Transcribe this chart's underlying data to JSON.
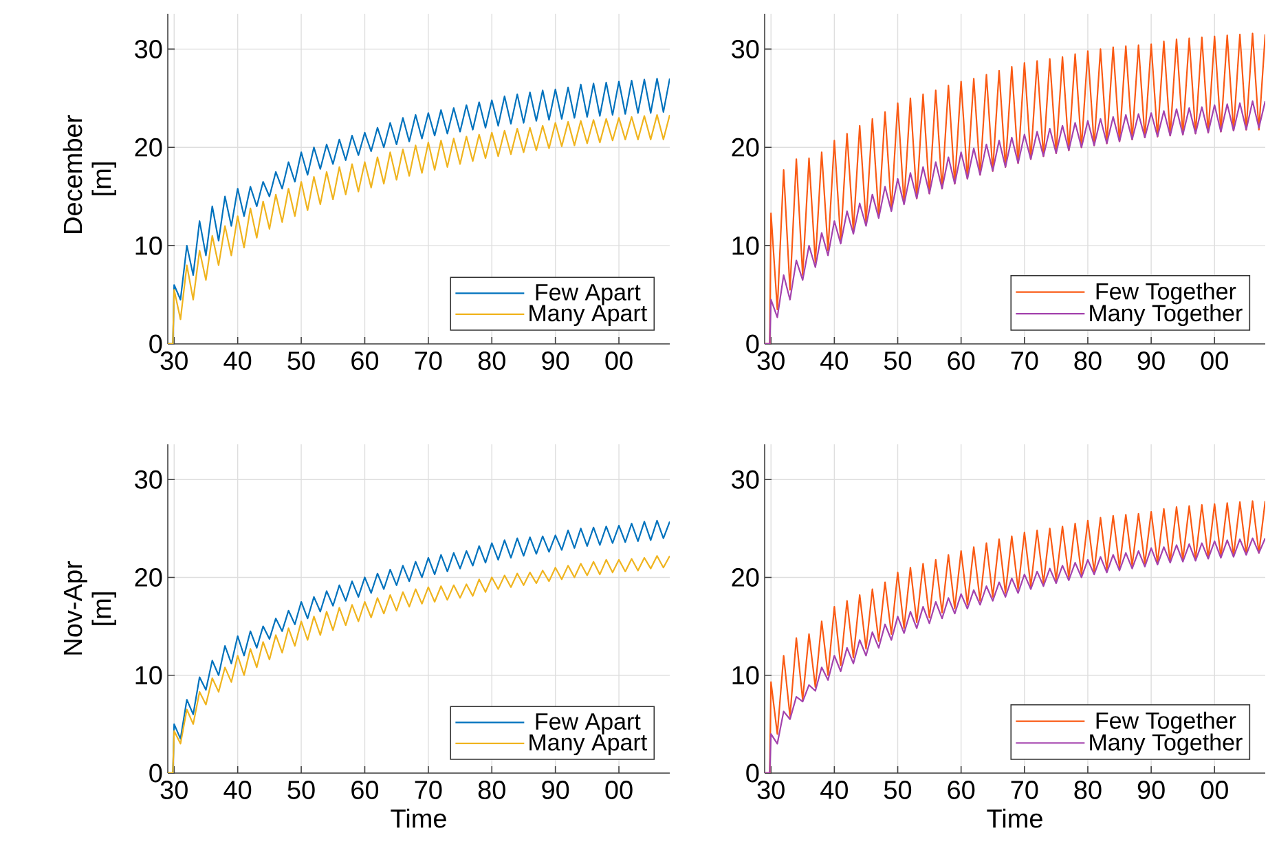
{
  "chart_data": [
    {
      "type": "line",
      "ylabel": "December [m]",
      "grid": true,
      "legend": "bottom right",
      "xlim": [
        1929,
        2008
      ],
      "ylim": [
        0,
        33.6
      ],
      "yticks": [
        0,
        10,
        20,
        30
      ],
      "xticks": [
        {
          "value": 1930,
          "label": "30"
        },
        {
          "value": 1940,
          "label": "40"
        },
        {
          "value": 1950,
          "label": "50"
        },
        {
          "value": 1960,
          "label": "60"
        },
        {
          "value": 1970,
          "label": "70"
        },
        {
          "value": 1980,
          "label": "80"
        },
        {
          "value": 1990,
          "label": "90"
        },
        {
          "value": 2000,
          "label": "00"
        }
      ],
      "x": [
        1929,
        1929.8,
        1930,
        1931,
        1932,
        1933,
        1934,
        1935,
        1936,
        1937,
        1938,
        1939,
        1940,
        1941,
        1942,
        1943,
        1944,
        1945,
        1946,
        1947,
        1948,
        1949,
        1950,
        1951,
        1952,
        1953,
        1954,
        1955,
        1956,
        1957,
        1958,
        1959,
        1960,
        1961,
        1962,
        1963,
        1964,
        1965,
        1966,
        1967,
        1968,
        1969,
        1970,
        1971,
        1972,
        1973,
        1974,
        1975,
        1976,
        1977,
        1978,
        1979,
        1980,
        1981,
        1982,
        1983,
        1984,
        1985,
        1986,
        1987,
        1988,
        1989,
        1990,
        1991,
        1992,
        1993,
        1994,
        1995,
        1996,
        1997,
        1998,
        1999,
        2000,
        2001,
        2002,
        2003,
        2004,
        2005,
        2006,
        2007,
        2008
      ],
      "series": [
        {
          "name": "Few Apart",
          "color": "#0072bd",
          "values": [
            0,
            0,
            6,
            4.5,
            10,
            7,
            12.5,
            9,
            14,
            10.5,
            15,
            12,
            15.8,
            13,
            16,
            14,
            16.5,
            15,
            17.5,
            15.8,
            18.5,
            16.5,
            19.5,
            17.2,
            20,
            17.8,
            20.3,
            18.3,
            20.8,
            18.7,
            21.2,
            19.2,
            21.5,
            19.6,
            22,
            20,
            22.5,
            20.3,
            23,
            20.6,
            23.3,
            20.9,
            23.5,
            21.2,
            23.8,
            21.4,
            24,
            21.6,
            24.3,
            21.8,
            24.6,
            22,
            24.8,
            22.2,
            25.2,
            22.4,
            25.4,
            22.5,
            25.6,
            22.7,
            25.8,
            22.8,
            25.9,
            22.9,
            26.1,
            23,
            26.4,
            23.1,
            26.5,
            23.2,
            26.6,
            23.3,
            26.7,
            23.4,
            26.8,
            23.5,
            26.9,
            23.5,
            27,
            23.6,
            27
          ]
        },
        {
          "name": "Many Apart",
          "color": "#f0b41e",
          "values": [
            0,
            0,
            5.5,
            2.5,
            8,
            4.5,
            9.5,
            6.5,
            11,
            8,
            12,
            9,
            13,
            9.8,
            13.8,
            10.8,
            14.5,
            11.7,
            15.2,
            12.4,
            15.8,
            13,
            16.5,
            13.6,
            17,
            14.2,
            17.5,
            14.7,
            18,
            15.2,
            18.3,
            15.5,
            18.5,
            15.9,
            19,
            16.3,
            19.5,
            16.7,
            19.8,
            17.1,
            20.2,
            17.4,
            20.5,
            17.7,
            20.7,
            18,
            20.9,
            18.3,
            21.1,
            18.6,
            21.3,
            18.9,
            21.5,
            19.1,
            21.7,
            19.3,
            21.9,
            19.5,
            22,
            19.7,
            22.2,
            19.9,
            22.5,
            20.1,
            22.6,
            20.2,
            22.7,
            20.4,
            22.8,
            20.5,
            22.9,
            20.7,
            23,
            20.8,
            23.1,
            20.8,
            23.2,
            20.8,
            23.3,
            20.8,
            23.3
          ]
        }
      ]
    },
    {
      "type": "line",
      "grid": true,
      "legend": "bottom right",
      "xlim": [
        1929,
        2008
      ],
      "ylim": [
        0,
        33.6
      ],
      "yticks": [
        0,
        10,
        20,
        30
      ],
      "xticks": [
        {
          "value": 1930,
          "label": "30"
        },
        {
          "value": 1940,
          "label": "40"
        },
        {
          "value": 1950,
          "label": "50"
        },
        {
          "value": 1960,
          "label": "60"
        },
        {
          "value": 1970,
          "label": "70"
        },
        {
          "value": 1980,
          "label": "80"
        },
        {
          "value": 1990,
          "label": "90"
        },
        {
          "value": 2000,
          "label": "00"
        }
      ],
      "x": [
        1929,
        1929.8,
        1930,
        1931,
        1932,
        1933,
        1934,
        1935,
        1936,
        1937,
        1938,
        1939,
        1940,
        1941,
        1942,
        1943,
        1944,
        1945,
        1946,
        1947,
        1948,
        1949,
        1950,
        1951,
        1952,
        1953,
        1954,
        1955,
        1956,
        1957,
        1958,
        1959,
        1960,
        1961,
        1962,
        1963,
        1964,
        1965,
        1966,
        1967,
        1968,
        1969,
        1970,
        1971,
        1972,
        1973,
        1974,
        1975,
        1976,
        1977,
        1978,
        1979,
        1980,
        1981,
        1982,
        1983,
        1984,
        1985,
        1986,
        1987,
        1988,
        1989,
        1990,
        1991,
        1992,
        1993,
        1994,
        1995,
        1996,
        1997,
        1998,
        1999,
        2000,
        2001,
        2002,
        2003,
        2004,
        2005,
        2006,
        2007,
        2008
      ],
      "series": [
        {
          "name": "Few Together",
          "color": "#fa5a14",
          "values": [
            0,
            0,
            13.3,
            3.5,
            17.7,
            5.5,
            18.8,
            7,
            18.9,
            8.3,
            19.5,
            9.5,
            20.7,
            10.5,
            21.4,
            11.5,
            22.2,
            12.3,
            22.9,
            13,
            23.6,
            13.7,
            24.5,
            14.3,
            25,
            14.8,
            25.4,
            15.3,
            25.8,
            15.8,
            26.3,
            16.3,
            26.7,
            16.8,
            27,
            17.2,
            27.4,
            17.6,
            27.8,
            18,
            28.2,
            18.4,
            28.6,
            18.8,
            28.8,
            19.1,
            29,
            19.4,
            29.2,
            19.7,
            29.5,
            20,
            29.8,
            20.2,
            30,
            20.4,
            30.2,
            20.6,
            30.3,
            20.8,
            30.4,
            21,
            30.5,
            21.1,
            30.8,
            21.2,
            31,
            21.3,
            31.1,
            21.4,
            31.2,
            21.5,
            31.3,
            21.6,
            31.4,
            21.7,
            31.5,
            21.8,
            31.6,
            21.8,
            31.5
          ]
        },
        {
          "name": "Many Together",
          "color": "#a342ad",
          "values": [
            0,
            0,
            4.5,
            2.7,
            7,
            4.5,
            8.5,
            6.5,
            10,
            7.8,
            11.3,
            9,
            12.5,
            10.2,
            13.5,
            11.2,
            14.3,
            12,
            15.2,
            12.8,
            16,
            13.5,
            16.8,
            14.2,
            17.4,
            14.8,
            18,
            15.3,
            18.5,
            15.8,
            19,
            16.3,
            19.5,
            16.8,
            19.9,
            17.2,
            20.3,
            17.6,
            20.7,
            18,
            21,
            18.4,
            21.3,
            18.8,
            21.6,
            19.1,
            21.9,
            19.4,
            22.2,
            19.7,
            22.5,
            20,
            22.7,
            20.2,
            22.9,
            20.4,
            23.1,
            20.6,
            23.3,
            20.8,
            23.4,
            21,
            23.5,
            21.1,
            23.7,
            21.2,
            23.9,
            21.3,
            24,
            21.4,
            24.1,
            21.5,
            24.3,
            21.6,
            24.4,
            21.7,
            24.5,
            21.8,
            24.7,
            22,
            24.7
          ]
        }
      ]
    },
    {
      "type": "line",
      "ylabel": "Nov-Apr [m]",
      "xlabel": "Time",
      "grid": true,
      "legend": "bottom right",
      "xlim": [
        1929,
        2008
      ],
      "ylim": [
        0,
        33.6
      ],
      "yticks": [
        0,
        10,
        20,
        30
      ],
      "xticks": [
        {
          "value": 1930,
          "label": "30"
        },
        {
          "value": 1940,
          "label": "40"
        },
        {
          "value": 1950,
          "label": "50"
        },
        {
          "value": 1960,
          "label": "60"
        },
        {
          "value": 1970,
          "label": "70"
        },
        {
          "value": 1980,
          "label": "80"
        },
        {
          "value": 1990,
          "label": "90"
        },
        {
          "value": 2000,
          "label": "00"
        }
      ],
      "x": [
        1929,
        1929.8,
        1930,
        1931,
        1932,
        1933,
        1934,
        1935,
        1936,
        1937,
        1938,
        1939,
        1940,
        1941,
        1942,
        1943,
        1944,
        1945,
        1946,
        1947,
        1948,
        1949,
        1950,
        1951,
        1952,
        1953,
        1954,
        1955,
        1956,
        1957,
        1958,
        1959,
        1960,
        1961,
        1962,
        1963,
        1964,
        1965,
        1966,
        1967,
        1968,
        1969,
        1970,
        1971,
        1972,
        1973,
        1974,
        1975,
        1976,
        1977,
        1978,
        1979,
        1980,
        1981,
        1982,
        1983,
        1984,
        1985,
        1986,
        1987,
        1988,
        1989,
        1990,
        1991,
        1992,
        1993,
        1994,
        1995,
        1996,
        1997,
        1998,
        1999,
        2000,
        2001,
        2002,
        2003,
        2004,
        2005,
        2006,
        2007,
        2008
      ],
      "series": [
        {
          "name": "Few Apart",
          "color": "#0072bd",
          "values": [
            0,
            0,
            5,
            3.5,
            7.5,
            6,
            9.8,
            8.5,
            11.5,
            10,
            13,
            11.2,
            14,
            12,
            14.5,
            12.8,
            15,
            13.7,
            15.8,
            14.5,
            16.6,
            15.2,
            17.5,
            15.8,
            18,
            16.5,
            18.6,
            17.1,
            19.2,
            17.6,
            19.6,
            18,
            20,
            18.4,
            20.4,
            18.8,
            20.8,
            19.2,
            21.2,
            19.6,
            21.6,
            20,
            22,
            20.3,
            22.3,
            20.6,
            22.5,
            20.9,
            22.7,
            21.2,
            23.2,
            21.5,
            23.5,
            21.8,
            23.8,
            22,
            24,
            22.2,
            24.1,
            22.4,
            24.2,
            22.6,
            24.3,
            22.8,
            24.8,
            23,
            25,
            23.2,
            25.1,
            23.3,
            25.2,
            23.5,
            25.3,
            23.6,
            25.5,
            23.7,
            25.7,
            23.8,
            25.8,
            24,
            25.7
          ]
        },
        {
          "name": "Many Apart",
          "color": "#f0b41e",
          "values": [
            0,
            0,
            4.3,
            3,
            6.5,
            5,
            8.3,
            7,
            9.7,
            8.3,
            10.8,
            9.3,
            12,
            10,
            12.7,
            10.8,
            13.4,
            11.6,
            14.1,
            12.3,
            14.8,
            13,
            15.5,
            13.6,
            16,
            14.1,
            16.5,
            14.6,
            16.9,
            15.1,
            17.2,
            15.5,
            17.5,
            15.9,
            17.9,
            16.3,
            18.2,
            16.6,
            18.5,
            17,
            18.8,
            17.3,
            19,
            17.5,
            19.1,
            17.7,
            19.2,
            17.9,
            19.3,
            18.1,
            19.8,
            18.5,
            20,
            18.8,
            20.2,
            19,
            20.4,
            19.2,
            20.5,
            19.4,
            20.7,
            19.6,
            21,
            19.8,
            21.2,
            20,
            21.4,
            20.2,
            21.6,
            20.3,
            21.8,
            20.5,
            21.8,
            20.6,
            21.9,
            20.7,
            22,
            20.9,
            22.2,
            21,
            22.2
          ]
        }
      ]
    },
    {
      "type": "line",
      "xlabel": "Time",
      "grid": true,
      "legend": "bottom right",
      "xlim": [
        1929,
        2008
      ],
      "ylim": [
        0,
        33.6
      ],
      "yticks": [
        0,
        10,
        20,
        30
      ],
      "xticks": [
        {
          "value": 1930,
          "label": "30"
        },
        {
          "value": 1940,
          "label": "40"
        },
        {
          "value": 1950,
          "label": "50"
        },
        {
          "value": 1960,
          "label": "60"
        },
        {
          "value": 1970,
          "label": "70"
        },
        {
          "value": 1980,
          "label": "80"
        },
        {
          "value": 1990,
          "label": "90"
        },
        {
          "value": 2000,
          "label": "00"
        }
      ],
      "x": [
        1929,
        1929.8,
        1930,
        1931,
        1932,
        1933,
        1934,
        1935,
        1936,
        1937,
        1938,
        1939,
        1940,
        1941,
        1942,
        1943,
        1944,
        1945,
        1946,
        1947,
        1948,
        1949,
        1950,
        1951,
        1952,
        1953,
        1954,
        1955,
        1956,
        1957,
        1958,
        1959,
        1960,
        1961,
        1962,
        1963,
        1964,
        1965,
        1966,
        1967,
        1968,
        1969,
        1970,
        1971,
        1972,
        1973,
        1974,
        1975,
        1976,
        1977,
        1978,
        1979,
        1980,
        1981,
        1982,
        1983,
        1984,
        1985,
        1986,
        1987,
        1988,
        1989,
        1990,
        1991,
        1992,
        1993,
        1994,
        1995,
        1996,
        1997,
        1998,
        1999,
        2000,
        2001,
        2002,
        2003,
        2004,
        2005,
        2006,
        2007,
        2008
      ],
      "series": [
        {
          "name": "Few Together",
          "color": "#fa5a14",
          "values": [
            0,
            0,
            9.3,
            4,
            12,
            5.8,
            13.8,
            7.5,
            14.2,
            8.8,
            15.5,
            10,
            17,
            11,
            17.6,
            11.8,
            18.2,
            12.7,
            18.8,
            13.5,
            19.5,
            14.2,
            20.5,
            14.8,
            21,
            15.4,
            21.4,
            15.9,
            21.8,
            16.4,
            22.3,
            16.8,
            22.7,
            17.2,
            23.1,
            17.6,
            23.5,
            18,
            23.9,
            18.4,
            24.2,
            18.8,
            24.6,
            19.1,
            24.8,
            19.4,
            25,
            19.7,
            25.2,
            20,
            25.5,
            20.3,
            25.8,
            20.6,
            26.1,
            20.8,
            26.3,
            21,
            26.4,
            21.2,
            26.5,
            21.4,
            26.7,
            21.5,
            27,
            21.6,
            27.2,
            21.8,
            27.3,
            21.9,
            27.4,
            22,
            27.5,
            22.1,
            27.6,
            22.2,
            27.7,
            22.4,
            27.8,
            22.5,
            27.8
          ]
        },
        {
          "name": "Many Together",
          "color": "#a342ad",
          "values": [
            0,
            0,
            4,
            3,
            6.3,
            5.5,
            7.8,
            7.3,
            9,
            8.4,
            10.8,
            9.5,
            12,
            10.4,
            12.8,
            11.2,
            13.6,
            12,
            14.4,
            12.8,
            15.2,
            13.6,
            16,
            14.3,
            16.5,
            14.8,
            17,
            15.3,
            17.5,
            15.8,
            17.9,
            16.3,
            18.3,
            16.8,
            18.7,
            17.2,
            19.1,
            17.6,
            19.5,
            18,
            19.9,
            18.4,
            20.3,
            18.8,
            20.6,
            19.1,
            20.9,
            19.4,
            21.2,
            19.7,
            21.5,
            20,
            21.8,
            20.3,
            22.1,
            20.5,
            22.3,
            20.7,
            22.5,
            20.9,
            22.7,
            21.1,
            23,
            21.3,
            23.1,
            21.5,
            23.3,
            21.6,
            23.4,
            21.7,
            23.5,
            21.9,
            23.7,
            22,
            23.8,
            22.1,
            23.9,
            22.3,
            24,
            22.5,
            24
          ]
        }
      ]
    }
  ]
}
